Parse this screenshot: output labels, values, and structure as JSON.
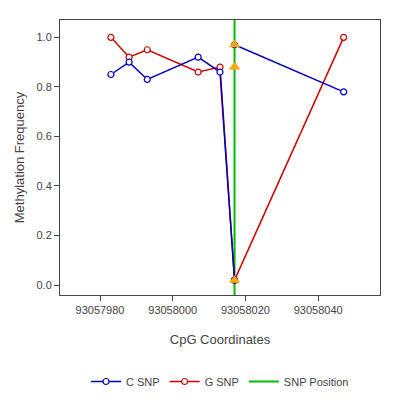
{
  "chart_data": {
    "type": "line",
    "xlabel": "CpG Coordinates",
    "ylabel": "Methylation Frequency",
    "series": [
      {
        "name": "C SNP",
        "color": "#0000bb",
        "marker": "circle",
        "line_style": "solid",
        "x": [
          93057983,
          93057988,
          93057993,
          93058007,
          93058013,
          93058017,
          93058017,
          93058017,
          93058047
        ],
        "values": [
          0.85,
          0.9,
          0.83,
          0.92,
          0.86,
          0.02,
          null,
          0.97,
          0.78
        ]
      },
      {
        "name": "G SNP",
        "color": "#cc0000",
        "marker": "circle",
        "line_style": "solid",
        "x": [
          93057983,
          93057988,
          93057993,
          93058007,
          93058013,
          93058017,
          93058017,
          93058017,
          93058047
        ],
        "values": [
          1.0,
          0.92,
          0.95,
          0.86,
          0.88,
          0.02,
          null,
          0.02,
          1.0
        ]
      },
      {
        "name": "SNP Position",
        "type": "vline",
        "color": "#00bb00",
        "line_style": "solid",
        "x": 93058017
      },
      {
        "type": "scatter",
        "marker": "triangle-up",
        "color": "#FFA500",
        "x": [
          93058017,
          93058017,
          93058017
        ],
        "values": [
          0.97,
          0.88,
          0.02
        ]
      }
    ],
    "xlim": [
      93057969,
      93058057
    ],
    "xticks": [
      93057980,
      93058000,
      93058020,
      93058040
    ],
    "ylim": [
      -0.04,
      1.07
    ],
    "yticks": [
      {
        "value": 0.0,
        "label": "0.0"
      },
      0.2,
      0.4,
      0.6,
      0.8,
      {
        "value": 1.0,
        "label": "1.0"
      }
    ],
    "grid": false,
    "legend": "bottom"
  }
}
